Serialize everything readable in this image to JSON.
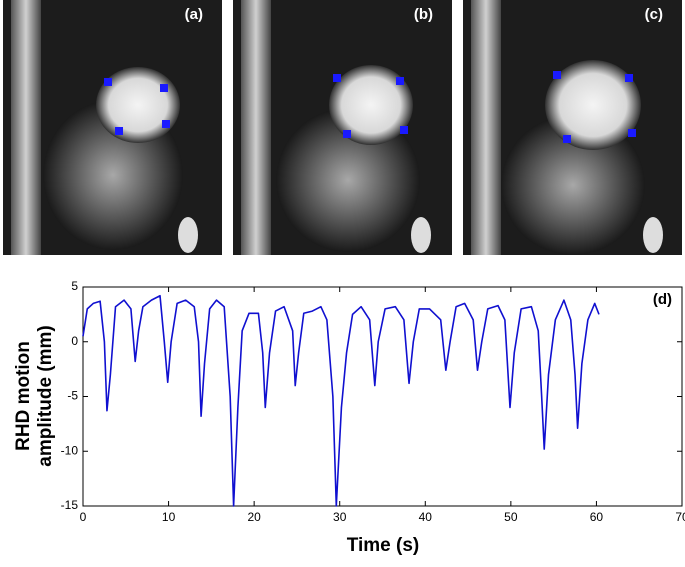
{
  "panels": [
    {
      "label": "(a)"
    },
    {
      "label": "(b)"
    },
    {
      "label": "(c)"
    }
  ],
  "chart_data": {
    "type": "line",
    "annotation": "(d)",
    "xlabel": "Time (s)",
    "ylabel": [
      "RHD motion",
      "amplitude (mm)"
    ],
    "xlim": [
      0,
      70
    ],
    "xticks": [
      0,
      10,
      20,
      30,
      40,
      50,
      60,
      70
    ],
    "ylim": [
      -15,
      5
    ],
    "yticks": [
      -15,
      -10,
      -5,
      0,
      5
    ],
    "x": [
      0,
      0.5,
      1.2,
      2,
      2.5,
      2.8,
      3.2,
      3.8,
      4.8,
      5.6,
      6.1,
      6.5,
      7,
      8,
      9,
      9.5,
      9.9,
      10.3,
      11,
      12,
      13,
      13.5,
      13.8,
      14.2,
      14.8,
      15.6,
      16.5,
      17.2,
      17.6,
      18.1,
      18.6,
      19.4,
      20.5,
      21,
      21.3,
      21.8,
      22.5,
      23.5,
      24.5,
      24.8,
      25.2,
      25.8,
      26.8,
      27.8,
      28.5,
      29.2,
      29.6,
      30.2,
      30.8,
      31.5,
      32.5,
      33.5,
      34.1,
      34.5,
      35.3,
      36.5,
      37.5,
      38.1,
      38.6,
      39.3,
      40.5,
      41.8,
      42.4,
      42.9,
      43.6,
      44.6,
      45.6,
      46.1,
      46.6,
      47.3,
      48.5,
      49.3,
      49.9,
      50.4,
      51.2,
      52.4,
      53.2,
      53.6,
      53.9,
      54.4,
      55.2,
      56.2,
      57,
      57.5,
      57.8,
      58.3,
      59,
      59.8,
      60.3
    ],
    "series": [
      {
        "color": "#1010d0",
        "values": [
          0.5,
          3,
          3.5,
          3.7,
          0,
          -6.3,
          -3,
          3.2,
          3.8,
          3,
          -1.8,
          1,
          3.2,
          3.8,
          4.2,
          0,
          -3.7,
          0,
          3.5,
          3.8,
          3.2,
          0,
          -6.8,
          -2,
          3,
          3.8,
          3.2,
          -5,
          -15,
          -6,
          1,
          2.6,
          2.6,
          -1,
          -6,
          -1,
          2.8,
          3.2,
          1,
          -4,
          -1,
          2.6,
          2.8,
          3.2,
          2,
          -5,
          -15,
          -6,
          -1,
          2.5,
          3.2,
          2,
          -4,
          0,
          3,
          3.2,
          2,
          -3.8,
          0,
          3,
          3,
          2,
          -2.6,
          0,
          3.2,
          3.5,
          2,
          -2.6,
          0,
          3,
          3.3,
          2,
          -6,
          -1,
          3,
          3.2,
          1,
          -5,
          -9.8,
          -3,
          2,
          3.8,
          2,
          -3,
          -7.9,
          -2,
          2,
          3.5,
          2.5
        ]
      }
    ]
  }
}
